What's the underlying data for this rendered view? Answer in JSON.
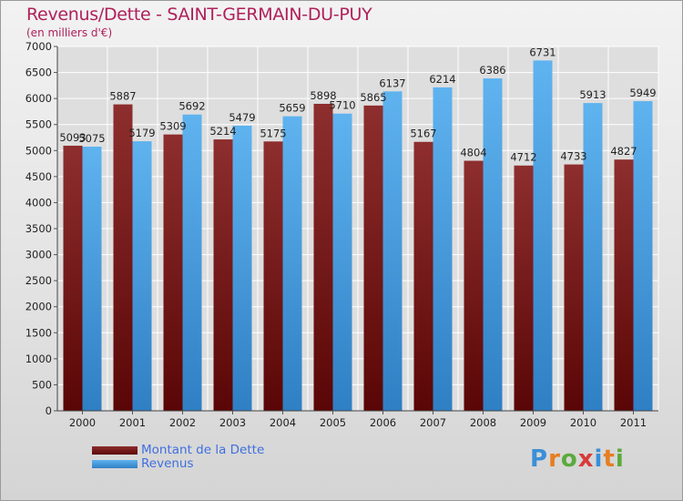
{
  "header": {
    "title": "Revenus/Dette - SAINT-GERMAIN-DU-PUY",
    "subtitle": "(en milliers d'€)"
  },
  "colors": {
    "dette": "#7a1a1a",
    "dette_light": "#9b3838",
    "revenus": "#4aa3e6",
    "revenus_light": "#6cb8f0",
    "grid": "#ffffff",
    "axis_text": "#222222"
  },
  "chart_data": {
    "type": "bar",
    "title": "Revenus/Dette - SAINT-GERMAIN-DU-PUY",
    "ylabel": "(en milliers d'€)",
    "xlabel": "",
    "categories": [
      "2000",
      "2001",
      "2002",
      "2003",
      "2004",
      "2005",
      "2006",
      "2007",
      "2008",
      "2009",
      "2010",
      "2011"
    ],
    "series": [
      {
        "name": "Montant de la Dette",
        "values": [
          5093,
          5887,
          5309,
          5214,
          5175,
          5898,
          5865,
          5167,
          4804,
          4712,
          4733,
          4827
        ]
      },
      {
        "name": "Revenus",
        "values": [
          5075,
          5179,
          5692,
          5479,
          5659,
          5710,
          6137,
          6214,
          6386,
          6731,
          5913,
          5949
        ]
      }
    ],
    "ylim": [
      0,
      7000
    ],
    "yticks": [
      0,
      500,
      1000,
      1500,
      2000,
      2500,
      3000,
      3500,
      4000,
      4500,
      5000,
      5500,
      6000,
      6500,
      7000
    ],
    "grid": true,
    "legend_position": "bottom-left"
  },
  "legend": {
    "items": [
      {
        "label": "Montant de la Dette"
      },
      {
        "label": "Revenus"
      }
    ]
  },
  "logo": {
    "text": "Proxiti",
    "letters": [
      "P",
      "r",
      "o",
      "x",
      "i",
      "t",
      "i"
    ],
    "letter_colors": [
      "#3a8fd8",
      "#e67e22",
      "#5aab3c",
      "#d83a3a",
      "#3a8fd8",
      "#e67e22",
      "#5aab3c"
    ]
  }
}
